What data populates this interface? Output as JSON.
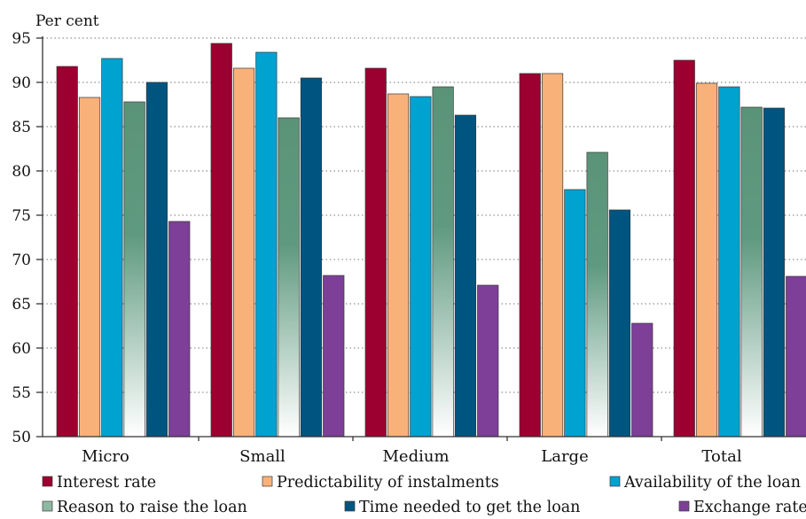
{
  "chart_data": {
    "type": "bar",
    "title": "",
    "ylabel": "Per cent",
    "xlabel": "",
    "ylim": [
      50,
      95
    ],
    "yticks": [
      50,
      55,
      60,
      65,
      70,
      75,
      80,
      85,
      90,
      95
    ],
    "grid": true,
    "legend_position": "bottom",
    "categories": [
      "Micro",
      "Small",
      "Medium",
      "Large",
      "Total"
    ],
    "series": [
      {
        "name": "Interest rate",
        "color": "#9b0030",
        "values": [
          91.8,
          94.4,
          91.6,
          91.0,
          92.5
        ]
      },
      {
        "name": "Predictability of instalments",
        "color": "#f9b17a",
        "values": [
          88.3,
          91.6,
          88.7,
          91.0,
          89.9
        ]
      },
      {
        "name": "Availability of the loan",
        "color": "#00a2d0",
        "values": [
          92.7,
          93.4,
          88.4,
          77.9,
          89.5
        ]
      },
      {
        "name": "Reason to raise the loan",
        "color": "#5a9378",
        "gradient": true,
        "values": [
          87.8,
          86.0,
          89.5,
          82.1,
          87.2
        ]
      },
      {
        "name": "Time needed to get the loan",
        "color": "#005580",
        "values": [
          90.0,
          90.5,
          86.3,
          75.6,
          87.1
        ]
      },
      {
        "name": "Exchange rate",
        "color": "#7d3f98",
        "values": [
          74.3,
          68.2,
          67.1,
          62.8,
          68.1
        ]
      }
    ]
  }
}
